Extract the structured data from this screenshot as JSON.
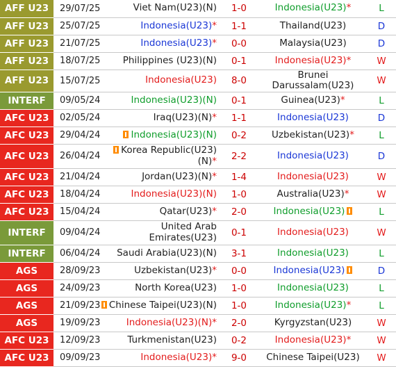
{
  "colors": {
    "comp_aff": "#9a9a2f",
    "comp_interf": "#7a9a3a",
    "comp_afc": "#e8271f",
    "comp_ags": "#e8271f",
    "score": "#cc0000",
    "win": "#e31b1b",
    "draw": "#1a37d6",
    "loss": "#0f9d2b",
    "card": "#ff8c00"
  },
  "rows": [
    {
      "comp": "AFF U23",
      "comp_type": "aff",
      "date": "29/07/25",
      "home": "Viet Nam(U23)(N)",
      "home_color": "black",
      "home_card": false,
      "score": "1-0",
      "away": "Indonesia(U23)",
      "away_star": true,
      "away_color": "green",
      "away_card": false,
      "result": "L",
      "h": 25
    },
    {
      "comp": "AFF U23",
      "comp_type": "aff",
      "date": "25/07/25",
      "home": "Indonesia(U23)",
      "home_star": true,
      "home_color": "blue",
      "home_card": false,
      "score": "1-1",
      "away": "Thailand(U23)",
      "away_color": "black",
      "away_card": false,
      "result": "D",
      "h": 25
    },
    {
      "comp": "AFF U23",
      "comp_type": "aff",
      "date": "21/07/25",
      "home": "Indonesia(U23)",
      "home_star": true,
      "home_color": "blue",
      "home_card": false,
      "score": "0-0",
      "away": "Malaysia(U23)",
      "away_color": "black",
      "away_card": false,
      "result": "D",
      "h": 25
    },
    {
      "comp": "AFF U23",
      "comp_type": "aff",
      "date": "18/07/25",
      "home": "Philippines (U23)(N)",
      "home_color": "black",
      "home_card": false,
      "score": "0-1",
      "away": "Indonesia(U23)",
      "away_star": true,
      "away_color": "red",
      "away_card": false,
      "result": "W",
      "h": 25
    },
    {
      "comp": "AFF U23",
      "comp_type": "aff",
      "date": "15/07/25",
      "home": "Indonesia(U23)",
      "home_color": "red",
      "home_card": false,
      "score": "8-0",
      "away": "Brunei Darussalam(U23)",
      "away_color": "black",
      "away_card": false,
      "result": "W",
      "h": 25
    },
    {
      "comp": "INTERF",
      "comp_type": "interf",
      "date": "09/05/24",
      "home": "Indonesia(U23)(N)",
      "home_color": "green",
      "home_card": false,
      "score": "0-1",
      "away": "Guinea(U23)",
      "away_star": true,
      "away_color": "black",
      "away_card": false,
      "result": "L",
      "h": 25
    },
    {
      "comp": "AFC U23",
      "comp_type": "afc",
      "date": "02/05/24",
      "home": "Iraq(U23)(N)",
      "home_star": true,
      "home_color": "black",
      "home_card": false,
      "score": "1-1",
      "away": "Indonesia(U23)",
      "away_color": "blue",
      "away_card": false,
      "result": "D",
      "h": 25
    },
    {
      "comp": "AFC U23",
      "comp_type": "afc",
      "date": "29/04/24",
      "home": "Indonesia(U23)(N)",
      "home_color": "green",
      "home_card": true,
      "score": "0-2",
      "away": "Uzbekistan(U23)",
      "away_star": true,
      "away_color": "black",
      "away_card": false,
      "result": "L",
      "h": 25
    },
    {
      "comp": "AFC U23",
      "comp_type": "afc",
      "date": "26/04/24",
      "home": "Korea Republic(U23)(N)",
      "home_star": true,
      "home_color": "black",
      "home_card": true,
      "score": "2-2",
      "away": "Indonesia(U23)",
      "away_color": "blue",
      "away_card": false,
      "result": "D",
      "h": 35
    },
    {
      "comp": "AFC U23",
      "comp_type": "afc",
      "date": "21/04/24",
      "home": "Jordan(U23)(N)",
      "home_star": true,
      "home_color": "black",
      "home_card": false,
      "score": "1-4",
      "away": "Indonesia(U23)",
      "away_color": "red",
      "away_card": false,
      "result": "W",
      "h": 25
    },
    {
      "comp": "AFC U23",
      "comp_type": "afc",
      "date": "18/04/24",
      "home": "Indonesia(U23)(N)",
      "home_color": "red",
      "home_card": false,
      "score": "1-0",
      "away": "Australia(U23)",
      "away_star": true,
      "away_color": "black",
      "away_card": false,
      "result": "W",
      "h": 25
    },
    {
      "comp": "AFC U23",
      "comp_type": "afc",
      "date": "15/04/24",
      "home": "Qatar(U23)",
      "home_star": true,
      "home_color": "black",
      "home_card": false,
      "score": "2-0",
      "away": "Indonesia(U23)",
      "away_color": "green",
      "away_card": true,
      "result": "L",
      "h": 25
    },
    {
      "comp": "INTERF",
      "comp_type": "interf",
      "date": "09/04/24",
      "home": "United Arab Emirates(U23)",
      "home_color": "black",
      "home_card": false,
      "score": "0-1",
      "away": "Indonesia(U23)",
      "away_color": "red",
      "away_card": false,
      "result": "W",
      "h": 35
    },
    {
      "comp": "INTERF",
      "comp_type": "interf",
      "date": "06/04/24",
      "home": "Saudi Arabia(U23)(N)",
      "home_color": "black",
      "home_card": false,
      "score": "3-1",
      "away": "Indonesia(U23)",
      "away_color": "green",
      "away_card": false,
      "result": "L",
      "h": 25
    },
    {
      "comp": "AGS",
      "comp_type": "ags",
      "date": "28/09/23",
      "home": "Uzbekistan(U23)",
      "home_star": true,
      "home_color": "black",
      "home_card": false,
      "score": "0-0",
      "away": "Indonesia(U23)",
      "away_color": "blue",
      "away_card": true,
      "result": "D",
      "h": 25
    },
    {
      "comp": "AGS",
      "comp_type": "ags",
      "date": "24/09/23",
      "home": "North Korea(U23)",
      "home_color": "black",
      "home_card": false,
      "score": "1-0",
      "away": "Indonesia(U23)",
      "away_color": "green",
      "away_card": false,
      "result": "L",
      "h": 25
    },
    {
      "comp": "AGS",
      "comp_type": "ags",
      "date": "21/09/23",
      "home": "Chinese Taipei(U23)(N)",
      "home_color": "black",
      "home_card": true,
      "score": "1-0",
      "away": "Indonesia(U23)",
      "away_star": true,
      "away_color": "green",
      "away_card": false,
      "result": "L",
      "h": 25
    },
    {
      "comp": "AGS",
      "comp_type": "ags",
      "date": "19/09/23",
      "home": "Indonesia(U23)(N)",
      "home_star": true,
      "home_color": "red",
      "home_card": false,
      "score": "2-0",
      "away": "Kyrgyzstan(U23)",
      "away_color": "black",
      "away_card": false,
      "result": "W",
      "h": 25
    },
    {
      "comp": "AFC U23",
      "comp_type": "afc",
      "date": "12/09/23",
      "home": "Turkmenistan(U23)",
      "home_color": "black",
      "home_card": false,
      "score": "0-2",
      "away": "Indonesia(U23)",
      "away_star": true,
      "away_color": "red",
      "away_card": false,
      "result": "W",
      "h": 25
    },
    {
      "comp": "AFC U23",
      "comp_type": "afc",
      "date": "09/09/23",
      "home": "Indonesia(U23)",
      "home_star": true,
      "home_color": "red",
      "home_card": false,
      "score": "9-0",
      "away": "Chinese Taipei(U23)",
      "away_color": "black",
      "away_card": false,
      "result": "W",
      "h": 25
    }
  ]
}
